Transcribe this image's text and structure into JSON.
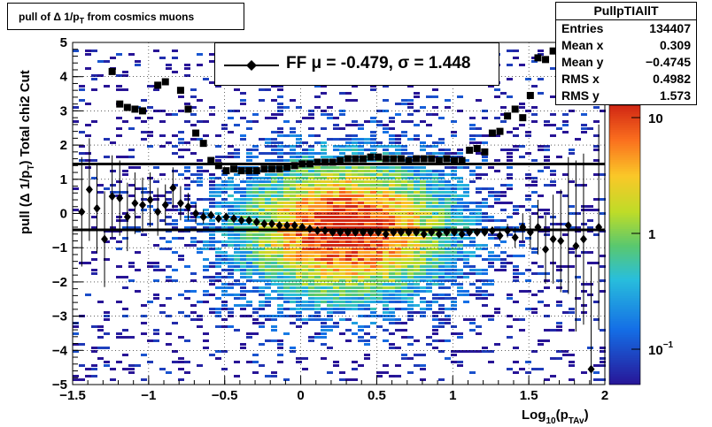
{
  "title_text": "pull of Δ 1/p",
  "title_sub": "T",
  "title_rest": " from cosmics muons",
  "stats": {
    "name": "PullpTIAllT",
    "rows": [
      {
        "key": "Entries",
        "value": "134407"
      },
      {
        "key": "Mean x",
        "value": "0.309"
      },
      {
        "key": "Mean y",
        "value": "−0.4745"
      },
      {
        "key": "RMS x",
        "value": "0.4982"
      },
      {
        "key": "RMS y",
        "value": "1.573"
      }
    ]
  },
  "legend": {
    "label": "FF μ = -0.479, σ =   1.448"
  },
  "colors": {
    "mean_marker": "#000000",
    "sigma_marker": "#000000",
    "line": "#000000"
  },
  "chart_data": {
    "type": "heatmap",
    "title": "pull of Δ 1/pT from cosmics muons",
    "xlabel": "Log10(pTAv)",
    "ylabel": "pull (Δ 1/pT)  Total chi2 Cut",
    "xlim": [
      -1.5,
      2.0
    ],
    "ylim": [
      -5,
      5
    ],
    "x_ticks": [
      "−1.5",
      "−1",
      "−0.5",
      "0",
      "0.5",
      "1",
      "1.5",
      "2"
    ],
    "y_ticks": [
      "−5",
      "−4",
      "−3",
      "−2",
      "−1",
      "0",
      "1",
      "2",
      "3",
      "4",
      "5"
    ],
    "z_scale": "log",
    "z_ticks": [
      "10",
      "1",
      "10−1"
    ],
    "grid": true,
    "density": {
      "center_x": 0.3,
      "center_y": -0.48,
      "sigma_x": 0.5,
      "sigma_y": 1.45
    },
    "series": [
      {
        "name": "mean",
        "marker": "diamond",
        "x": [
          -1.44,
          -1.39,
          -1.34,
          -1.29,
          -1.24,
          -1.19,
          -1.14,
          -1.09,
          -1.04,
          -0.99,
          -0.94,
          -0.89,
          -0.84,
          -0.79,
          -0.74,
          -0.69,
          -0.64,
          -0.59,
          -0.54,
          -0.49,
          -0.44,
          -0.39,
          -0.34,
          -0.29,
          -0.24,
          -0.19,
          -0.14,
          -0.09,
          -0.04,
          0.01,
          0.06,
          0.11,
          0.16,
          0.21,
          0.26,
          0.31,
          0.36,
          0.41,
          0.46,
          0.51,
          0.56,
          0.61,
          0.66,
          0.71,
          0.76,
          0.81,
          0.86,
          0.91,
          0.96,
          1.01,
          1.06,
          1.11,
          1.16,
          1.21,
          1.26,
          1.31,
          1.36,
          1.41,
          1.46,
          1.51,
          1.56,
          1.61,
          1.66,
          1.71,
          1.76,
          1.81,
          1.86,
          1.91,
          1.96
        ],
        "y": [
          0.05,
          0.7,
          0.15,
          -0.75,
          0.5,
          0.45,
          -0.1,
          0.3,
          0.25,
          0.4,
          0.05,
          0.25,
          0.75,
          0.3,
          0.2,
          0.0,
          -0.1,
          -0.05,
          -0.15,
          -0.1,
          -0.15,
          -0.2,
          -0.2,
          -0.25,
          -0.3,
          -0.3,
          -0.35,
          -0.35,
          -0.35,
          -0.4,
          -0.45,
          -0.5,
          -0.5,
          -0.55,
          -0.55,
          -0.55,
          -0.55,
          -0.55,
          -0.55,
          -0.55,
          -0.6,
          -0.55,
          -0.55,
          -0.55,
          -0.55,
          -0.6,
          -0.55,
          -0.6,
          -0.55,
          -0.55,
          -0.6,
          -0.55,
          -0.55,
          -0.55,
          -0.5,
          -0.65,
          -0.5,
          -0.7,
          -0.4,
          -0.55,
          -0.4,
          -1.05,
          -0.75,
          -0.8,
          -0.35,
          -0.95,
          -0.75,
          -4.55,
          -0.4
        ],
        "yerr": [
          1.6,
          1.5,
          1.3,
          1.4,
          1.2,
          1.1,
          1.0,
          0.9,
          0.8,
          0.8,
          0.7,
          0.6,
          0.6,
          0.5,
          0.4,
          0.3,
          0.2,
          0.1,
          0.05,
          0.05,
          0.05,
          0.05,
          0.05,
          0.05,
          0.05,
          0.05,
          0.05,
          0.05,
          0.05,
          0.05,
          0.05,
          0.05,
          0.05,
          0.05,
          0.05,
          0.05,
          0.05,
          0.05,
          0.05,
          0.05,
          0.05,
          0.05,
          0.05,
          0.05,
          0.05,
          0.05,
          0.05,
          0.05,
          0.05,
          0.05,
          0.05,
          0.05,
          0.1,
          0.1,
          0.1,
          0.15,
          0.2,
          0.3,
          0.4,
          0.5,
          0.8,
          1.0,
          1.3,
          1.5,
          2.0,
          2.5,
          2.5,
          3.0,
          3.0
        ]
      },
      {
        "name": "sigma",
        "marker": "square",
        "x": [
          -1.24,
          -1.19,
          -1.14,
          -1.09,
          -1.04,
          -0.94,
          -0.89,
          -0.79,
          -0.74,
          -0.69,
          -0.64,
          -0.59,
          -0.54,
          -0.49,
          -0.44,
          -0.39,
          -0.34,
          -0.29,
          -0.24,
          -0.19,
          -0.14,
          -0.09,
          -0.04,
          0.01,
          0.06,
          0.11,
          0.16,
          0.21,
          0.26,
          0.31,
          0.36,
          0.41,
          0.46,
          0.51,
          0.56,
          0.61,
          0.66,
          0.71,
          0.76,
          0.81,
          0.86,
          0.91,
          0.96,
          1.01,
          1.06,
          1.11,
          1.16,
          1.21,
          1.26,
          1.31,
          1.36,
          1.41,
          1.46,
          1.51,
          1.56,
          1.61,
          1.66
        ],
        "y": [
          4.15,
          3.2,
          3.1,
          3.05,
          3.0,
          3.75,
          3.85,
          3.6,
          3.05,
          2.35,
          2.05,
          1.55,
          1.4,
          1.25,
          1.3,
          1.25,
          1.25,
          1.25,
          1.3,
          1.3,
          1.3,
          1.35,
          1.4,
          1.45,
          1.45,
          1.5,
          1.5,
          1.5,
          1.55,
          1.6,
          1.6,
          1.6,
          1.65,
          1.65,
          1.6,
          1.6,
          1.6,
          1.55,
          1.6,
          1.6,
          1.6,
          1.55,
          1.6,
          1.55,
          1.55,
          1.85,
          1.9,
          1.8,
          2.35,
          2.4,
          2.85,
          3.05,
          2.8,
          3.45,
          4.55,
          4.5,
          4.75
        ]
      }
    ],
    "fit_lines": [
      {
        "name": "sigma",
        "y": 1.448
      },
      {
        "name": "mean",
        "y": -0.479
      }
    ]
  },
  "axis_title_x": {
    "a": "Log",
    "b": "10",
    "c": "(p",
    "d": "TAv",
    "e": ")"
  },
  "axis_title_y": {
    "a": "pull (Δ 1/p",
    "b": "T",
    "c": ")  Total chi2 Cut"
  }
}
